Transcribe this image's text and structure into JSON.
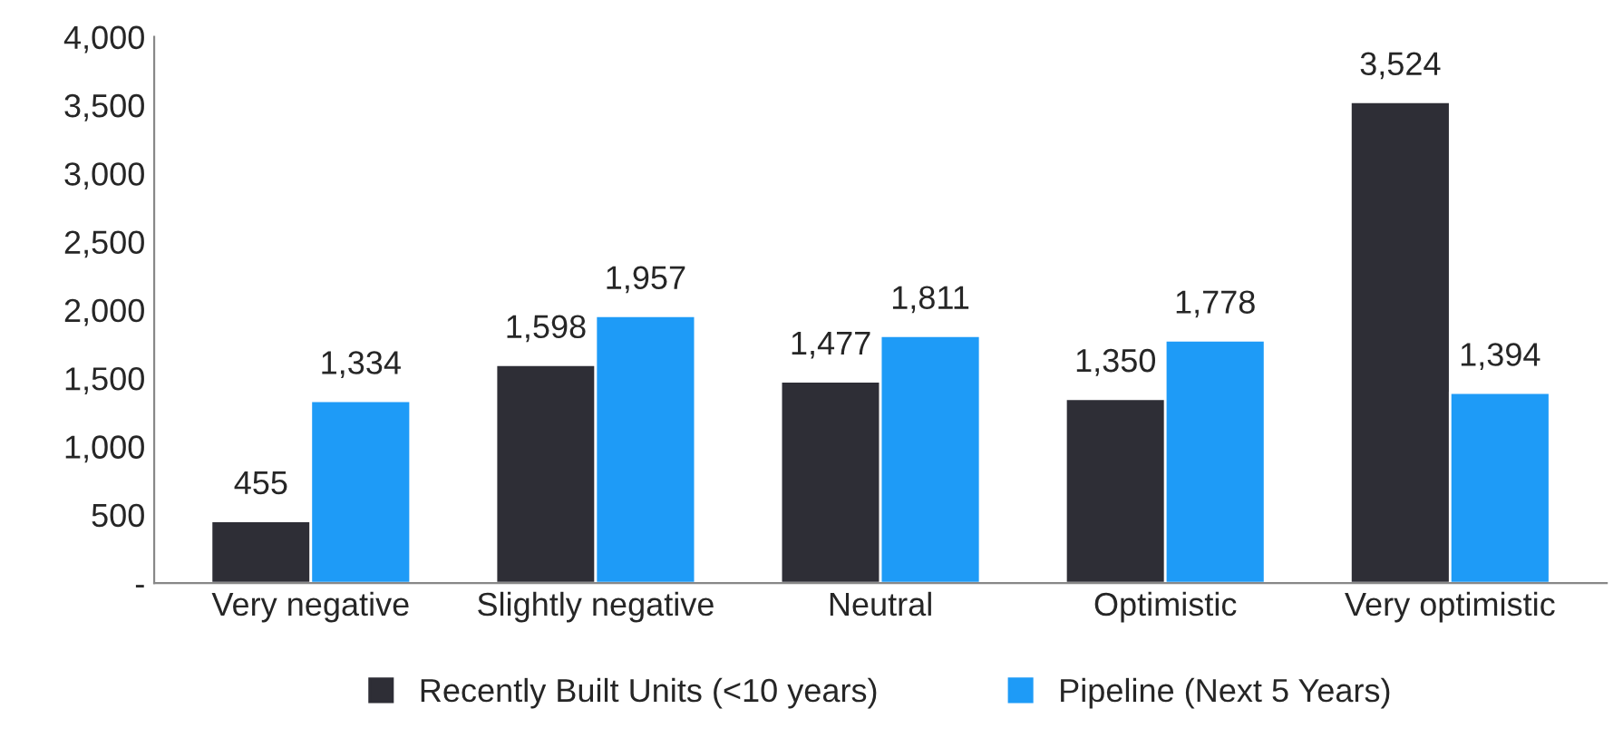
{
  "chart_data": {
    "type": "bar",
    "categories": [
      "Very negative",
      "Slightly negative",
      "Neutral",
      "Optimistic",
      "Very optimistic"
    ],
    "series": [
      {
        "name": "Recently Built Units (<10 years)",
        "color": "#2e2e36",
        "values": [
          455,
          1598,
          1477,
          1350,
          3524
        ],
        "value_labels": [
          "455",
          "1,598",
          "1,477",
          "1,350",
          "3,524"
        ]
      },
      {
        "name": "Pipeline (Next 5 Years)",
        "color": "#1e9bf7",
        "values": [
          1334,
          1957,
          1811,
          1778,
          1394
        ],
        "value_labels": [
          "1,334",
          "1,957",
          "1,811",
          "1,778",
          "1,394"
        ]
      }
    ],
    "ylim": [
      0,
      4000
    ],
    "yticks": [
      {
        "value": 0,
        "label": "-"
      },
      {
        "value": 500,
        "label": "500"
      },
      {
        "value": 1000,
        "label": "1,000"
      },
      {
        "value": 1500,
        "label": "1,500"
      },
      {
        "value": 2000,
        "label": "2,000"
      },
      {
        "value": 2500,
        "label": "2,500"
      },
      {
        "value": 3000,
        "label": "3,000"
      },
      {
        "value": 3500,
        "label": "3,500"
      },
      {
        "value": 4000,
        "label": "4,000"
      }
    ],
    "grid": false,
    "legend": "bottom"
  }
}
